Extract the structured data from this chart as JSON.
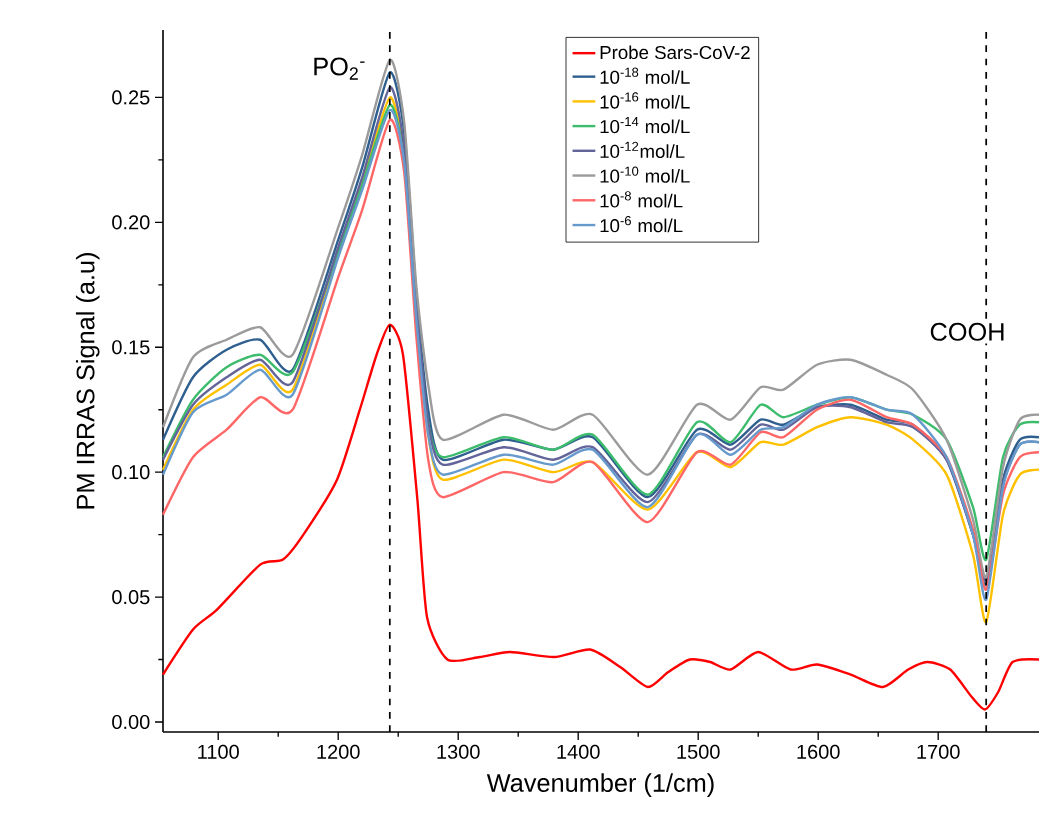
{
  "chart_data": {
    "type": "line",
    "xlabel": "Wavenumber (1/cm)",
    "ylabel": "PM IRRAS Signal (a.u)",
    "xlim": [
      1054,
      1784
    ],
    "ylim": [
      -0.004,
      0.277
    ],
    "xticks": [
      1100,
      1200,
      1300,
      1400,
      1500,
      1600,
      1700
    ],
    "yticks": [
      {
        "value": 0,
        "label": "0.00"
      },
      {
        "value": 0.05,
        "label": "0.05"
      },
      {
        "value": 0.1,
        "label": "0.10"
      },
      {
        "value": 0.15,
        "label": "0.15"
      },
      {
        "value": 0.2,
        "label": "0.20"
      },
      {
        "value": 0.25,
        "label": "0.25"
      }
    ],
    "legend": "top",
    "marker": "none",
    "x": [
      1054,
      1079,
      1107,
      1135,
      1162,
      1200,
      1220,
      1243,
      1255,
      1265,
      1275,
      1287,
      1338,
      1379,
      1412,
      1458,
      1499,
      1527,
      1552,
      1571,
      1599,
      1627,
      1657,
      1679,
      1707,
      1729,
      1740,
      1754,
      1768,
      1784
    ],
    "series": [
      {
        "name": "Probe Sars-CoV-2",
        "color": "#ff0000",
        "x": [
          1054,
          1079,
          1099,
          1135,
          1154,
          1171,
          1199,
          1218,
          1232,
          1243,
          1254,
          1266,
          1274,
          1291,
          1318,
          1343,
          1380,
          1410,
          1435,
          1458,
          1475,
          1493,
          1510,
          1527,
          1550,
          1577,
          1599,
          1627,
          1654,
          1675,
          1691,
          1710,
          1728,
          1739,
          1750,
          1762,
          1784
        ],
        "values": [
          0.019,
          0.037,
          0.045,
          0.063,
          0.065,
          0.075,
          0.097,
          0.125,
          0.147,
          0.159,
          0.147,
          0.089,
          0.042,
          0.025,
          0.026,
          0.028,
          0.026,
          0.029,
          0.022,
          0.014,
          0.02,
          0.025,
          0.024,
          0.021,
          0.028,
          0.021,
          0.023,
          0.019,
          0.014,
          0.021,
          0.024,
          0.021,
          0.01,
          0.005,
          0.012,
          0.024,
          0.025
        ]
      },
      {
        "name": "10$^{-18}$ mol/L",
        "color": "#2f5f8f",
        "values": [
          0.113,
          0.138,
          0.149,
          0.153,
          0.141,
          0.193,
          0.222,
          0.26,
          0.236,
          0.172,
          0.125,
          0.105,
          0.113,
          0.109,
          0.114,
          0.09,
          0.117,
          0.111,
          0.121,
          0.119,
          0.126,
          0.127,
          0.121,
          0.119,
          0.105,
          0.075,
          0.055,
          0.097,
          0.113,
          0.114
        ]
      },
      {
        "name": "10$^{-16}$ mol/L",
        "color": "#ffc000",
        "values": [
          0.101,
          0.125,
          0.135,
          0.143,
          0.133,
          0.188,
          0.216,
          0.25,
          0.226,
          0.163,
          0.115,
          0.097,
          0.105,
          0.1,
          0.104,
          0.085,
          0.108,
          0.102,
          0.112,
          0.111,
          0.118,
          0.122,
          0.119,
          0.113,
          0.099,
          0.067,
          0.04,
          0.083,
          0.099,
          0.101
        ]
      },
      {
        "name": "10$^{-14}$ mol/L",
        "color": "#3cbc6c",
        "values": [
          0.106,
          0.129,
          0.142,
          0.147,
          0.14,
          0.188,
          0.215,
          0.247,
          0.225,
          0.165,
          0.12,
          0.106,
          0.114,
          0.109,
          0.115,
          0.091,
          0.12,
          0.112,
          0.127,
          0.122,
          0.127,
          0.13,
          0.125,
          0.123,
          0.113,
          0.086,
          0.065,
          0.106,
          0.119,
          0.12
        ]
      },
      {
        "name": "10$^{-12}$mol/L",
        "color": "#62649a",
        "values": [
          0.105,
          0.127,
          0.138,
          0.145,
          0.136,
          0.19,
          0.218,
          0.254,
          0.23,
          0.168,
          0.12,
          0.103,
          0.11,
          0.105,
          0.11,
          0.088,
          0.115,
          0.109,
          0.119,
          0.117,
          0.126,
          0.126,
          0.12,
          0.118,
          0.105,
          0.075,
          0.057,
          0.095,
          0.111,
          0.112
        ]
      },
      {
        "name": "10$^{-10}$ mol/L",
        "color": "#9b9b9b",
        "values": [
          0.118,
          0.146,
          0.153,
          0.158,
          0.147,
          0.198,
          0.227,
          0.265,
          0.24,
          0.175,
          0.135,
          0.113,
          0.123,
          0.117,
          0.123,
          0.099,
          0.127,
          0.121,
          0.134,
          0.133,
          0.143,
          0.145,
          0.139,
          0.133,
          0.113,
          0.081,
          0.058,
          0.102,
          0.121,
          0.123
        ]
      },
      {
        "name": "10$^{-8}$ mol/L",
        "color": "#ff6666",
        "values": [
          0.083,
          0.106,
          0.117,
          0.13,
          0.125,
          0.178,
          0.205,
          0.241,
          0.22,
          0.155,
          0.105,
          0.09,
          0.1,
          0.096,
          0.104,
          0.08,
          0.108,
          0.103,
          0.116,
          0.114,
          0.125,
          0.129,
          0.122,
          0.119,
          0.106,
          0.077,
          0.053,
          0.091,
          0.106,
          0.108
        ]
      },
      {
        "name": "10$^{-6}$ mol/L",
        "color": "#6699cc",
        "values": [
          0.099,
          0.124,
          0.131,
          0.141,
          0.131,
          0.186,
          0.213,
          0.245,
          0.224,
          0.162,
          0.115,
          0.099,
          0.107,
          0.103,
          0.109,
          0.086,
          0.115,
          0.107,
          0.117,
          0.118,
          0.127,
          0.13,
          0.125,
          0.123,
          0.106,
          0.075,
          0.049,
          0.094,
          0.111,
          0.112
        ]
      }
    ],
    "ref_lines": [
      {
        "axis": "x",
        "value": 1243,
        "color": "#000000",
        "line_style": "dashed"
      },
      {
        "axis": "x",
        "value": 1740,
        "color": "#000000",
        "line_style": "dashed"
      }
    ],
    "annotations": [
      "PO$_{2}$$^{-}$",
      "COOH"
    ]
  }
}
